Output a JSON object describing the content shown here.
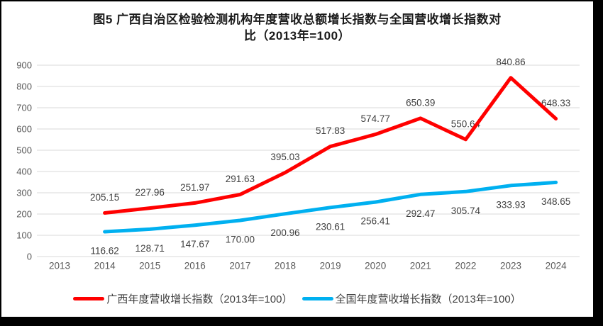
{
  "header": {
    "title_line1": "图5  广西自治区检验检测机构年度营收总额增长指数与全国营收增长指数对",
    "title_line2": "比（2013年=100）"
  },
  "colors": {
    "guangxi_red": "#FF0000",
    "national_blue": "#00B0F0",
    "gridline": "#D9D9D9",
    "tick_label": "#595959",
    "data_label": "#3F3F3F",
    "frame": "#000000",
    "background": "#FFFFFF"
  },
  "chart_data": {
    "type": "line",
    "title": "图5  广西自治区检验检测机构年度营收总额增长指数与全国营收增长指数对比（2013年=100）",
    "categories": [
      "2013",
      "2014",
      "2015",
      "2016",
      "2017",
      "2018",
      "2019",
      "2020",
      "2021",
      "2022",
      "2023",
      "2024"
    ],
    "series": [
      {
        "name": "广西年度营收增长指数（2013年=100）",
        "color": "#FF0000",
        "label_position": "above",
        "values": [
          null,
          205.15,
          227.96,
          251.97,
          291.63,
          395.03,
          517.83,
          574.77,
          650.39,
          550.64,
          840.86,
          648.33
        ]
      },
      {
        "name": "全国年度营收增长指数（2013年=100）",
        "color": "#00B0F0",
        "label_position": "below",
        "values": [
          null,
          116.62,
          128.71,
          147.67,
          170.0,
          200.96,
          230.61,
          256.41,
          292.47,
          305.74,
          333.93,
          348.65
        ]
      }
    ],
    "xlabel": "",
    "ylabel": "",
    "ylim": [
      0,
      900
    ],
    "ytick_step": 100,
    "yticks": [
      0,
      100,
      200,
      300,
      400,
      500,
      600,
      700,
      800,
      900
    ],
    "grid": true,
    "data_labels": true,
    "data_label_decimals": 2,
    "legend_position": "bottom"
  }
}
